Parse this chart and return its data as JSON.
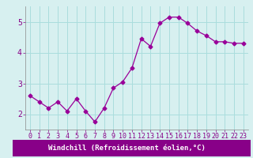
{
  "x": [
    0,
    1,
    2,
    3,
    4,
    5,
    6,
    7,
    8,
    9,
    10,
    11,
    12,
    13,
    14,
    15,
    16,
    17,
    18,
    19,
    20,
    21,
    22,
    23
  ],
  "y": [
    2.6,
    2.4,
    2.2,
    2.4,
    2.1,
    2.5,
    2.1,
    1.75,
    2.2,
    2.85,
    3.05,
    3.5,
    4.45,
    4.2,
    4.95,
    5.15,
    5.15,
    4.95,
    4.7,
    4.55,
    4.35,
    4.35,
    4.3,
    4.3
  ],
  "line_color": "#990099",
  "marker": "D",
  "marker_size": 2.5,
  "bg_color": "#d7f0f0",
  "grid_color": "#aadddd",
  "xlabel": "Windchill (Refroidissement éolien,°C)",
  "xlabel_color": "#ffffff",
  "xlabel_bg": "#880088",
  "ylim": [
    1.5,
    5.5
  ],
  "xlim": [
    -0.5,
    23.5
  ],
  "yticks": [
    2,
    3,
    4,
    5
  ],
  "xticks": [
    0,
    1,
    2,
    3,
    4,
    5,
    6,
    7,
    8,
    9,
    10,
    11,
    12,
    13,
    14,
    15,
    16,
    17,
    18,
    19,
    20,
    21,
    22,
    23
  ],
  "tick_color": "#880088",
  "spine_color": "#888888",
  "font_family": "monospace",
  "tick_fontsize": 6,
  "xlabel_fontsize": 6.5
}
